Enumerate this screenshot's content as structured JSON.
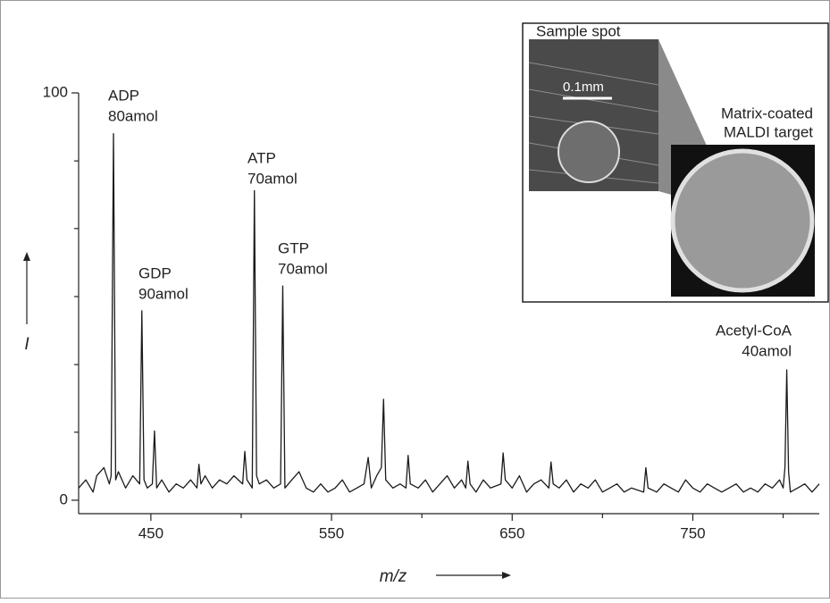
{
  "chart_data": {
    "type": "line",
    "x_label": "m/z",
    "y_label": "I",
    "xlim": [
      410,
      820
    ],
    "ylim": [
      -3.3,
      100
    ],
    "xticks": [
      450,
      550,
      650,
      750
    ],
    "xminor_ticks": [
      500,
      600,
      700,
      800
    ],
    "yticks": [
      0,
      100
    ],
    "yminor_ticks": [
      16.7,
      33.3,
      50,
      66.7,
      83.3
    ],
    "grid": false,
    "color": "#1a1a1a",
    "x": [
      410,
      414,
      418,
      420,
      424,
      427,
      428,
      429.3,
      430.5,
      432,
      436,
      440,
      443.8,
      445,
      446.2,
      448,
      450.8,
      452,
      453.2,
      456,
      460,
      464,
      468,
      472,
      475.5,
      476.6,
      477.7,
      480,
      484,
      488,
      492,
      496,
      500.8,
      502,
      503.2,
      506.1,
      507.3,
      508.5,
      510,
      514,
      518,
      521.8,
      523,
      524.2,
      528,
      532,
      536,
      540,
      544,
      548,
      552,
      556,
      560,
      564,
      568,
      570.3,
      572,
      575,
      577.6,
      578.8,
      580,
      584,
      588,
      591.2,
      592.4,
      593.6,
      598,
      602,
      606,
      610,
      614,
      618,
      622,
      624.3,
      625.5,
      626.7,
      630,
      634,
      638,
      643.8,
      645,
      646.2,
      650,
      654,
      658,
      662,
      666,
      670.3,
      671.5,
      672.7,
      676,
      680,
      684,
      688,
      692,
      696,
      700,
      704,
      708,
      712,
      716,
      722.8,
      724,
      725.2,
      730,
      734,
      738,
      742,
      746,
      750,
      754,
      758,
      762,
      766,
      770,
      774,
      778,
      782,
      786,
      790,
      794,
      798,
      800,
      801,
      802,
      803,
      804,
      808,
      812,
      816,
      820
    ],
    "values": [
      3,
      5,
      2,
      6,
      8,
      4,
      6,
      90,
      5,
      7,
      3,
      6,
      4,
      46.5,
      5,
      3,
      4,
      17,
      3,
      5,
      2,
      4,
      3,
      5,
      3,
      8.8,
      4,
      6,
      3,
      5,
      4,
      6,
      4,
      12,
      5,
      3,
      76,
      6,
      4,
      5,
      3,
      4,
      52.6,
      3,
      5,
      7,
      3,
      2,
      4,
      2,
      3,
      5,
      2,
      3,
      4,
      10.5,
      3,
      6,
      8,
      24.8,
      5,
      3,
      4,
      3,
      11,
      4,
      3,
      5,
      2,
      4,
      6,
      3,
      5,
      3,
      9.6,
      4,
      2,
      5,
      3,
      4,
      11.6,
      5,
      3,
      6,
      2,
      4,
      5,
      3,
      9.4,
      4,
      3,
      5,
      2,
      4,
      3,
      5,
      2,
      3,
      4,
      2,
      3,
      2,
      8,
      3,
      2,
      4,
      3,
      2,
      5,
      3,
      2,
      4,
      3,
      2,
      3,
      4,
      2,
      3,
      2,
      4,
      3,
      5,
      3,
      8,
      32,
      7,
      2,
      3,
      4,
      2,
      4
    ],
    "annotations": [
      [
        "ADP",
        "80amol"
      ],
      [
        "GDP",
        "90amol"
      ],
      [
        "ATP",
        "70amol"
      ],
      [
        "GTP",
        "70amol"
      ],
      [
        "Acetyl-CoA",
        "40amol"
      ]
    ],
    "inset": {
      "sample_label": "Sample spot",
      "scale_label": "0.1mm",
      "target_label": [
        "Matrix-coated",
        "MALDI target"
      ]
    }
  }
}
